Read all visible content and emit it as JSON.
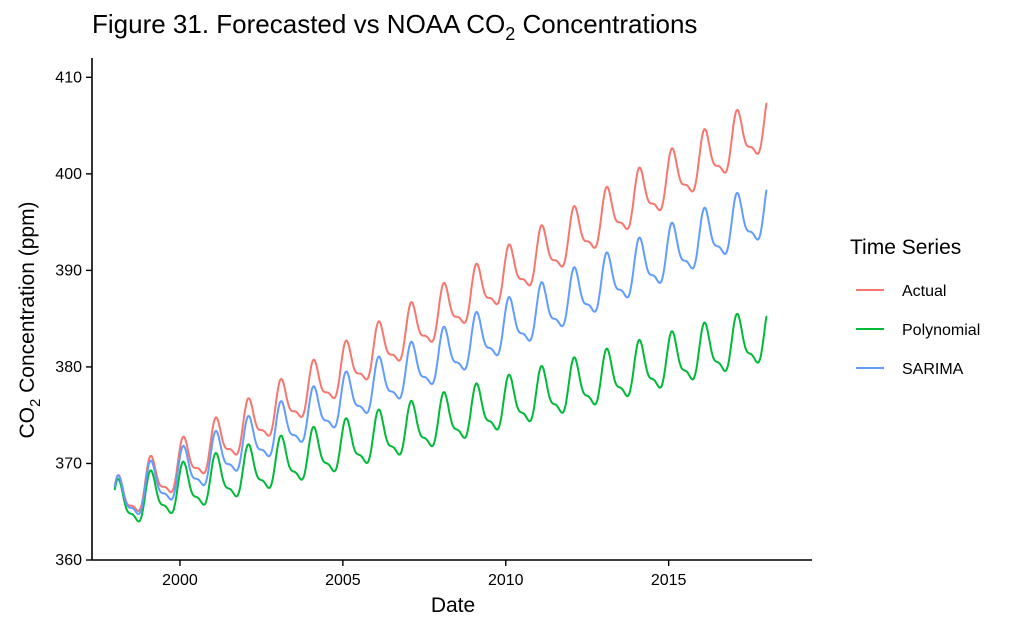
{
  "chart_data": {
    "type": "line",
    "title": "Figure 31. Forecasted vs NOAA CO",
    "title_subscript": "2",
    "title_suffix": " Concentrations",
    "xlabel": "Date",
    "ylabel": "CO",
    "ylabel_subscript": "2",
    "ylabel_suffix": " Concentration (ppm)",
    "xlim": [
      1997.3,
      2019.4
    ],
    "ylim": [
      360,
      412
    ],
    "x_ticks": [
      2000,
      2005,
      2010,
      2015
    ],
    "x_tick_labels": [
      "2000",
      "2005",
      "2010",
      "2015"
    ],
    "y_ticks": [
      360,
      370,
      380,
      390,
      400,
      410
    ],
    "y_tick_labels": [
      "360",
      "370",
      "380",
      "390",
      "400",
      "410"
    ],
    "grid": false,
    "legend": {
      "title": "Time Series",
      "position": "right"
    },
    "series": [
      {
        "name": "Actual",
        "color": "#F8766D",
        "start": 1998.0,
        "end": 2018.0,
        "trend": [
          365.7,
          405.0
        ],
        "amplitude": [
          2.8,
          3.3
        ]
      },
      {
        "name": "Polynomial",
        "color": "#00BA38",
        "start": 1998.0,
        "end": 2018.0,
        "trend": [
          365.4,
          383.0
        ],
        "amplitude": [
          2.8,
          3.2
        ]
      },
      {
        "name": "SARIMA",
        "color": "#619CFF",
        "start": 1998.0,
        "end": 2018.0,
        "trend": [
          365.7,
          396.0
        ],
        "amplitude": [
          2.8,
          3.3
        ]
      }
    ]
  }
}
